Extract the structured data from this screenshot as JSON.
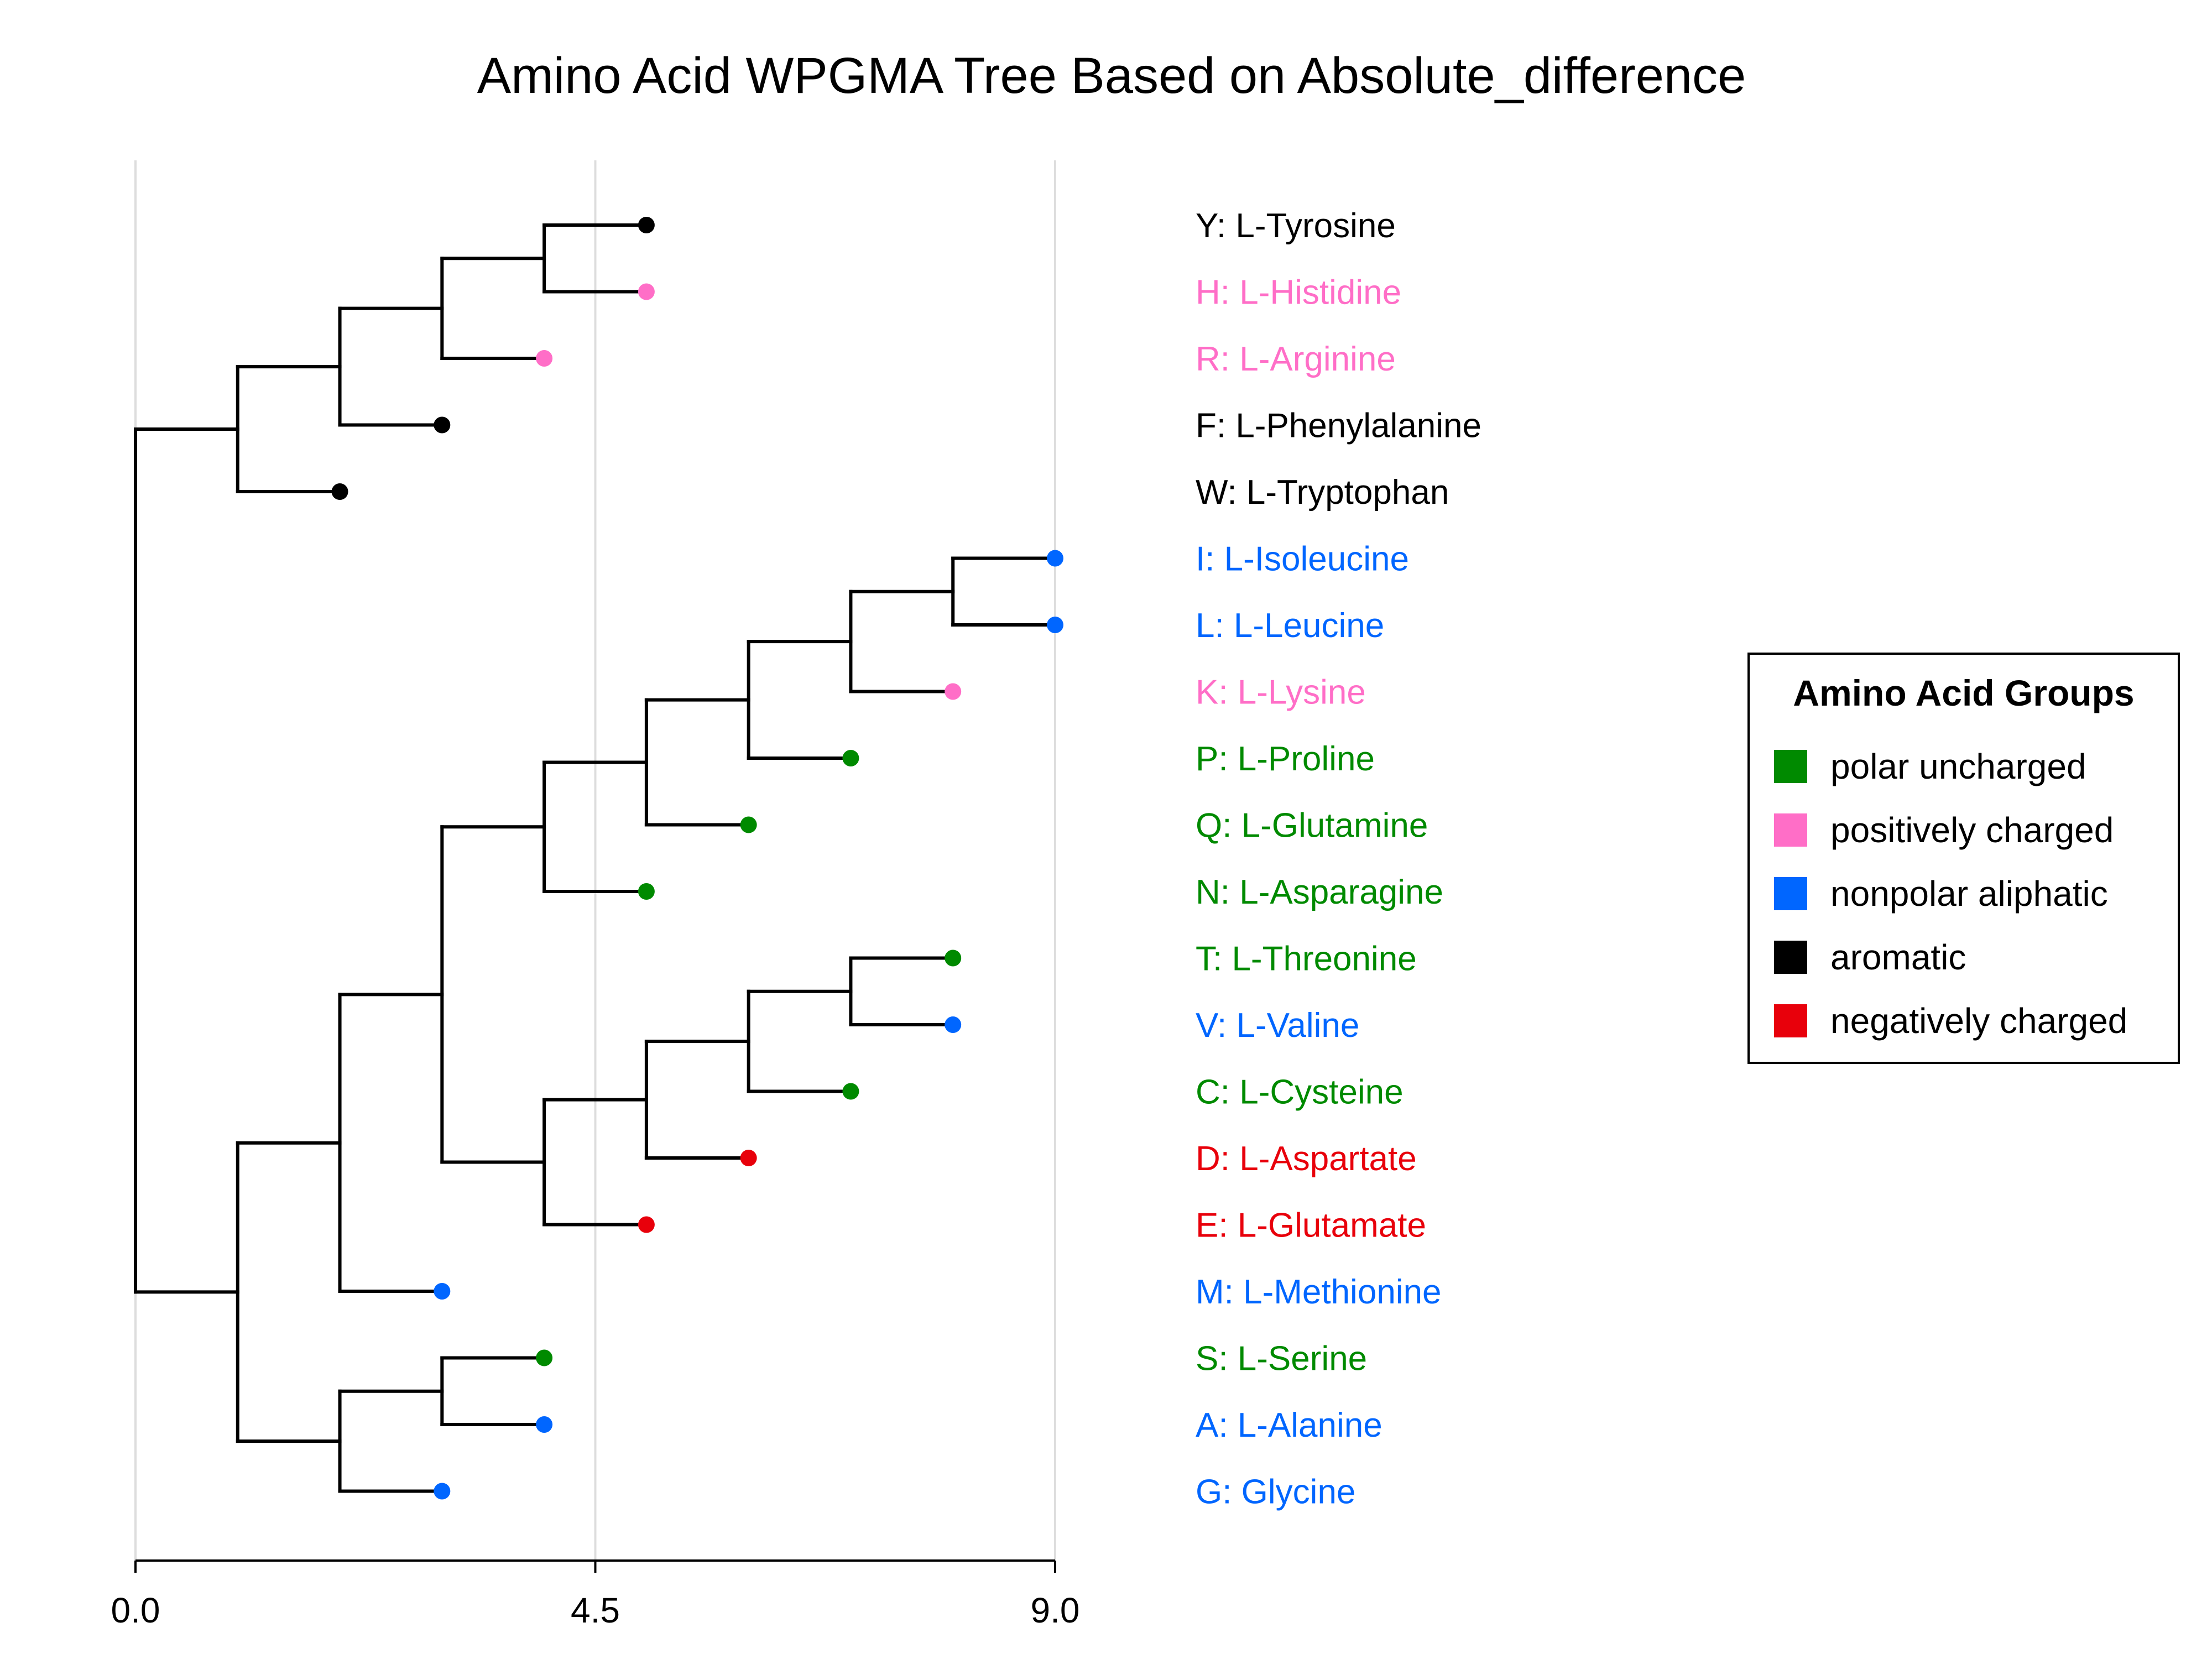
{
  "title": "Amino Acid WPGMA Tree Based on Absolute_difference",
  "axis": {
    "min": 0,
    "max": 9,
    "ticks": [
      {
        "value": 0,
        "label": "0.0"
      },
      {
        "value": 4.5,
        "label": "4.5"
      },
      {
        "value": 9,
        "label": "9.0"
      }
    ],
    "grid": true
  },
  "groups": [
    {
      "name": "polar uncharged",
      "color": "#008a00"
    },
    {
      "name": "positively charged",
      "color": "#ff6ec7"
    },
    {
      "name": "nonpolar aliphatic",
      "color": "#0066ff"
    },
    {
      "name": "aromatic",
      "color": "#000000"
    },
    {
      "name": "negatively charged",
      "color": "#e8000b"
    }
  ],
  "legend": {
    "title": "Amino Acid Groups",
    "position": "right"
  },
  "leaves": [
    {
      "label": "Y: L-Tyrosine",
      "group": "aromatic",
      "x": 5.0
    },
    {
      "label": "H: L-Histidine",
      "group": "positively charged",
      "x": 5.0
    },
    {
      "label": "R: L-Arginine",
      "group": "positively charged",
      "x": 4.0
    },
    {
      "label": "F: L-Phenylalanine",
      "group": "aromatic",
      "x": 3.0
    },
    {
      "label": "W: L-Tryptophan",
      "group": "aromatic",
      "x": 2.0
    },
    {
      "label": "I: L-Isoleucine",
      "group": "nonpolar aliphatic",
      "x": 9.0
    },
    {
      "label": "L: L-Leucine",
      "group": "nonpolar aliphatic",
      "x": 9.0
    },
    {
      "label": "K: L-Lysine",
      "group": "positively charged",
      "x": 8.0
    },
    {
      "label": "P: L-Proline",
      "group": "polar uncharged",
      "x": 7.0
    },
    {
      "label": "Q: L-Glutamine",
      "group": "polar uncharged",
      "x": 6.0
    },
    {
      "label": "N: L-Asparagine",
      "group": "polar uncharged",
      "x": 5.0
    },
    {
      "label": "T: L-Threonine",
      "group": "polar uncharged",
      "x": 8.0
    },
    {
      "label": "V: L-Valine",
      "group": "nonpolar aliphatic",
      "x": 8.0
    },
    {
      "label": "C: L-Cysteine",
      "group": "polar uncharged",
      "x": 7.0
    },
    {
      "label": "D: L-Aspartate",
      "group": "negatively charged",
      "x": 6.0
    },
    {
      "label": "E: L-Glutamate",
      "group": "negatively charged",
      "x": 5.0
    },
    {
      "label": "M: L-Methionine",
      "group": "nonpolar aliphatic",
      "x": 3.0
    },
    {
      "label": "S: L-Serine",
      "group": "polar uncharged",
      "x": 4.0
    },
    {
      "label": "A: L-Alanine",
      "group": "nonpolar aliphatic",
      "x": 4.0
    },
    {
      "label": "G: Glycine",
      "group": "nonpolar aliphatic",
      "x": 3.0
    }
  ],
  "chart_data": {
    "type": "dendrogram",
    "method": "WPGMA",
    "tree": {
      "x": 0,
      "children": [
        {
          "x": 1,
          "children": [
            {
              "x": 2,
              "children": [
                {
                  "x": 3,
                  "children": [
                    {
                      "x": 4,
                      "children": [
                        {
                          "leaf": 0
                        },
                        {
                          "leaf": 1
                        }
                      ]
                    },
                    {
                      "leaf": 2
                    }
                  ]
                },
                {
                  "leaf": 3
                }
              ]
            },
            {
              "leaf": 4
            }
          ]
        },
        {
          "x": 1,
          "children": [
            {
              "x": 2,
              "children": [
                {
                  "x": 3,
                  "children": [
                    {
                      "x": 4,
                      "children": [
                        {
                          "x": 5,
                          "children": [
                            {
                              "x": 6,
                              "children": [
                                {
                                  "x": 7,
                                  "children": [
                                    {
                                      "x": 8,
                                      "children": [
                                        {
                                          "leaf": 5
                                        },
                                        {
                                          "leaf": 6
                                        }
                                      ]
                                    },
                                    {
                                      "leaf": 7
                                    }
                                  ]
                                },
                                {
                                  "leaf": 8
                                }
                              ]
                            },
                            {
                              "leaf": 9
                            }
                          ]
                        },
                        {
                          "leaf": 10
                        }
                      ]
                    },
                    {
                      "x": 4,
                      "children": [
                        {
                          "x": 5,
                          "children": [
                            {
                              "x": 6,
                              "children": [
                                {
                                  "x": 7,
                                  "children": [
                                    {
                                      "leaf": 11
                                    },
                                    {
                                      "leaf": 12
                                    }
                                  ]
                                },
                                {
                                  "leaf": 13
                                }
                              ]
                            },
                            {
                              "leaf": 14
                            }
                          ]
                        },
                        {
                          "leaf": 15
                        }
                      ]
                    }
                  ]
                },
                {
                  "leaf": 16
                }
              ]
            },
            {
              "x": 2,
              "children": [
                {
                  "x": 3,
                  "children": [
                    {
                      "leaf": 17
                    },
                    {
                      "leaf": 18
                    }
                  ]
                },
                {
                  "leaf": 19
                }
              ]
            }
          ]
        }
      ]
    }
  }
}
